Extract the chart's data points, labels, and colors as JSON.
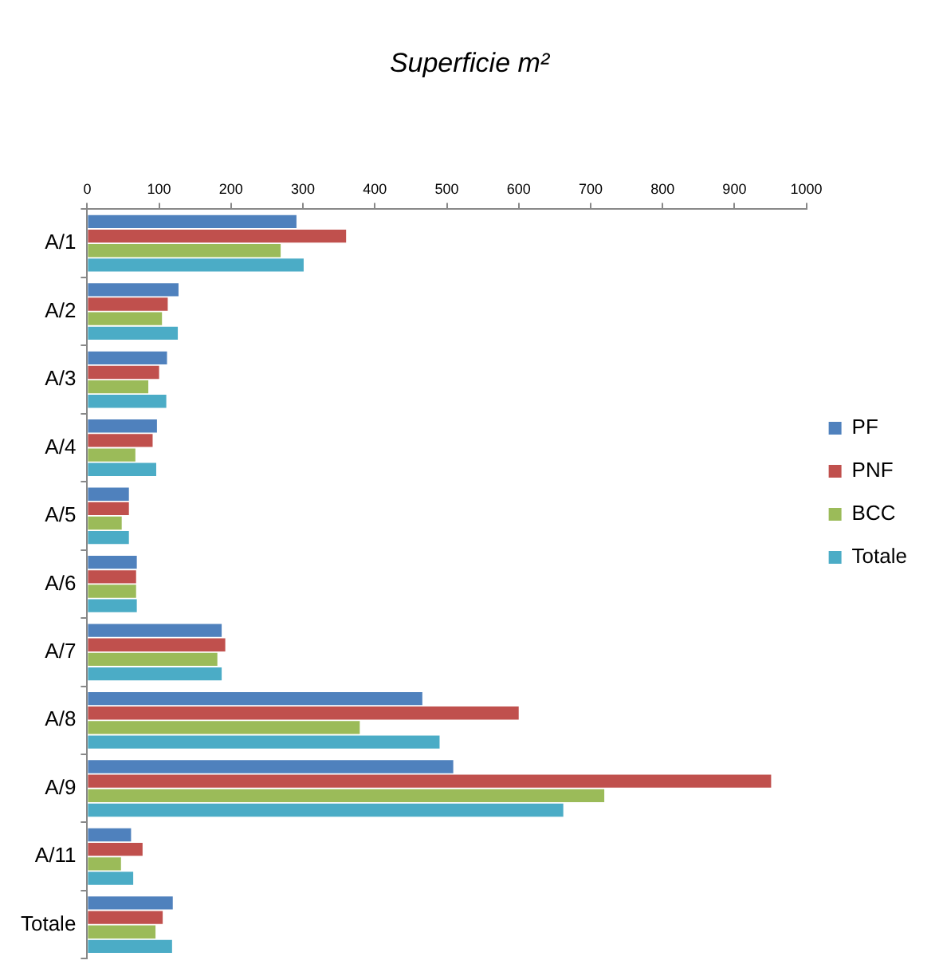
{
  "chart_data": {
    "type": "bar",
    "orientation": "horizontal",
    "title": "Superficie m²",
    "categories": [
      "A/1",
      "A/2",
      "A/3",
      "A/4",
      "A/5",
      "A/6",
      "A/7",
      "A/8",
      "A/9",
      "A/11",
      "Totale"
    ],
    "series": [
      {
        "name": "PF",
        "color": "#4f81bd",
        "values": [
          291,
          127,
          111,
          97,
          58,
          69,
          187,
          466,
          509,
          61,
          119
        ]
      },
      {
        "name": "PNF",
        "color": "#c0504d",
        "values": [
          360,
          112,
          100,
          91,
          58,
          68,
          192,
          600,
          951,
          77,
          105
        ]
      },
      {
        "name": "BCC",
        "color": "#9bbb59",
        "values": [
          269,
          104,
          85,
          67,
          48,
          68,
          181,
          379,
          719,
          47,
          95
        ]
      },
      {
        "name": "Totale",
        "color": "#4bacc6",
        "values": [
          301,
          126,
          110,
          96,
          58,
          69,
          187,
          490,
          662,
          64,
          118
        ]
      }
    ],
    "xlim": [
      0,
      1000
    ],
    "xticks": [
      0,
      100,
      200,
      300,
      400,
      500,
      600,
      700,
      800,
      900,
      1000
    ],
    "grid": false,
    "legend": "right"
  }
}
